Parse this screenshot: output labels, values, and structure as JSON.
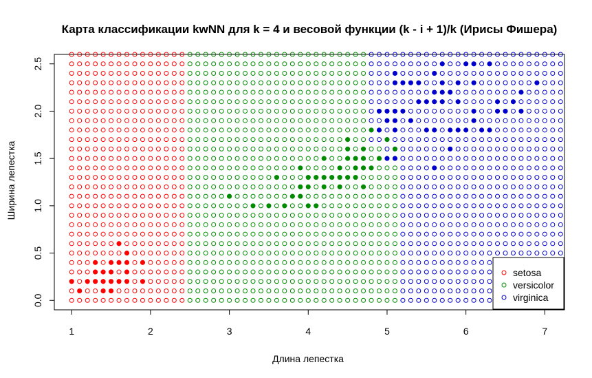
{
  "chart_data": {
    "type": "scatter",
    "title": "Карта классификации kwNN для k = 4 и весовой функции (k - i + 1)/k (Ирисы Фишера)",
    "xlabel": "Длина лепестка",
    "ylabel": "Ширина лепестка",
    "xlim": [
      0.78,
      7.25
    ],
    "ylim": [
      -0.1,
      2.6
    ],
    "x_ticks": [
      "1",
      "2",
      "3",
      "4",
      "5",
      "6",
      "7"
    ],
    "x_tick_values": [
      1,
      2,
      3,
      4,
      5,
      6,
      7
    ],
    "y_ticks": [
      "0.0",
      "0.5",
      "1.0",
      "1.5",
      "2.0",
      "2.5"
    ],
    "y_tick_values": [
      0,
      0.5,
      1.0,
      1.5,
      2.0,
      2.5
    ],
    "grid": false,
    "legend_position": "bottom-right",
    "colors": {
      "setosa": "#ff0000",
      "versicolor": "#008b00",
      "virginica": "#0000cd"
    },
    "classification_map": {
      "x_start": 1.0,
      "x_end": 7.2,
      "x_step": 0.1,
      "y_start": 0.0,
      "y_end": 2.6,
      "y_step": 0.1,
      "regions": [
        {
          "class": "setosa",
          "x_min": 1.0,
          "x_max": 2.4,
          "y_min": 0.0,
          "y_max": 2.6
        },
        {
          "class": "versicolor",
          "x_min": 2.5,
          "x_max": 4.7,
          "y_min": 0.0,
          "y_max": 2.6
        },
        {
          "class": "virginica",
          "x_min": 4.8,
          "x_max": 7.2,
          "y_min": 0.0,
          "y_max": 2.6
        },
        {
          "class": "versicolor",
          "x_min": 4.8,
          "x_max": 4.9,
          "y_min": 0.0,
          "y_max": 1.6
        },
        {
          "class": "versicolor",
          "x_min": 5.0,
          "x_max": 5.1,
          "y_min": 0.0,
          "y_max": 1.4
        }
      ]
    },
    "series": [
      {
        "name": "setosa",
        "marker": "open-circle",
        "color": "#ff0000",
        "points": [
          [
            1.4,
            0.2
          ],
          [
            1.4,
            0.2
          ],
          [
            1.3,
            0.2
          ],
          [
            1.5,
            0.2
          ],
          [
            1.4,
            0.2
          ],
          [
            1.7,
            0.4
          ],
          [
            1.4,
            0.3
          ],
          [
            1.5,
            0.2
          ],
          [
            1.4,
            0.2
          ],
          [
            1.5,
            0.1
          ],
          [
            1.5,
            0.2
          ],
          [
            1.6,
            0.2
          ],
          [
            1.4,
            0.1
          ],
          [
            1.1,
            0.1
          ],
          [
            1.2,
            0.2
          ],
          [
            1.5,
            0.4
          ],
          [
            1.3,
            0.4
          ],
          [
            1.4,
            0.3
          ],
          [
            1.7,
            0.3
          ],
          [
            1.5,
            0.3
          ],
          [
            1.7,
            0.2
          ],
          [
            1.5,
            0.4
          ],
          [
            1.0,
            0.2
          ],
          [
            1.7,
            0.5
          ],
          [
            1.9,
            0.2
          ],
          [
            1.6,
            0.2
          ],
          [
            1.6,
            0.4
          ],
          [
            1.5,
            0.2
          ],
          [
            1.4,
            0.2
          ],
          [
            1.6,
            0.2
          ],
          [
            1.6,
            0.2
          ],
          [
            1.5,
            0.4
          ],
          [
            1.5,
            0.1
          ],
          [
            1.4,
            0.2
          ],
          [
            1.5,
            0.2
          ],
          [
            1.2,
            0.2
          ],
          [
            1.3,
            0.2
          ],
          [
            1.4,
            0.1
          ],
          [
            1.3,
            0.2
          ],
          [
            1.5,
            0.2
          ],
          [
            1.3,
            0.3
          ],
          [
            1.3,
            0.3
          ],
          [
            1.3,
            0.2
          ],
          [
            1.6,
            0.6
          ],
          [
            1.9,
            0.4
          ],
          [
            1.4,
            0.3
          ],
          [
            1.6,
            0.2
          ],
          [
            1.4,
            0.2
          ],
          [
            1.5,
            0.2
          ],
          [
            1.4,
            0.2
          ]
        ]
      },
      {
        "name": "versicolor",
        "marker": "open-circle",
        "color": "#008b00",
        "points": [
          [
            4.7,
            1.4
          ],
          [
            4.5,
            1.5
          ],
          [
            4.9,
            1.5
          ],
          [
            4.0,
            1.3
          ],
          [
            4.6,
            1.5
          ],
          [
            4.5,
            1.3
          ],
          [
            4.7,
            1.6
          ],
          [
            3.3,
            1.0
          ],
          [
            4.6,
            1.3
          ],
          [
            3.9,
            1.4
          ],
          [
            3.5,
            1.0
          ],
          [
            4.2,
            1.5
          ],
          [
            4.0,
            1.0
          ],
          [
            4.7,
            1.4
          ],
          [
            3.6,
            1.3
          ],
          [
            4.4,
            1.4
          ],
          [
            4.5,
            1.5
          ],
          [
            4.1,
            1.0
          ],
          [
            4.5,
            1.5
          ],
          [
            3.9,
            1.1
          ],
          [
            4.8,
            1.8
          ],
          [
            4.0,
            1.3
          ],
          [
            4.9,
            1.5
          ],
          [
            4.7,
            1.2
          ],
          [
            4.3,
            1.3
          ],
          [
            4.4,
            1.4
          ],
          [
            4.8,
            1.4
          ],
          [
            5.0,
            1.7
          ],
          [
            4.5,
            1.5
          ],
          [
            3.5,
            1.0
          ],
          [
            3.8,
            1.1
          ],
          [
            3.7,
            1.0
          ],
          [
            3.9,
            1.2
          ],
          [
            5.1,
            1.6
          ],
          [
            4.5,
            1.5
          ],
          [
            4.5,
            1.6
          ],
          [
            4.7,
            1.5
          ],
          [
            4.4,
            1.3
          ],
          [
            4.1,
            1.3
          ],
          [
            4.0,
            1.3
          ],
          [
            4.4,
            1.2
          ],
          [
            4.6,
            1.4
          ],
          [
            4.0,
            1.2
          ],
          [
            3.3,
            1.0
          ],
          [
            4.2,
            1.3
          ],
          [
            4.2,
            1.2
          ],
          [
            4.2,
            1.3
          ],
          [
            4.3,
            1.3
          ],
          [
            3.0,
            1.1
          ],
          [
            4.1,
            1.3
          ]
        ]
      },
      {
        "name": "virginica",
        "marker": "open-circle",
        "color": "#0000cd",
        "points": [
          [
            6.0,
            2.5
          ],
          [
            5.1,
            1.9
          ],
          [
            5.9,
            2.1
          ],
          [
            5.6,
            1.8
          ],
          [
            5.8,
            2.2
          ],
          [
            6.6,
            2.1
          ],
          [
            4.5,
            1.7
          ],
          [
            6.3,
            1.8
          ],
          [
            5.8,
            1.8
          ],
          [
            6.1,
            2.5
          ],
          [
            5.1,
            2.0
          ],
          [
            5.3,
            1.9
          ],
          [
            5.5,
            2.1
          ],
          [
            5.0,
            2.0
          ],
          [
            5.1,
            2.4
          ],
          [
            5.3,
            2.3
          ],
          [
            5.5,
            1.8
          ],
          [
            6.7,
            2.2
          ],
          [
            6.9,
            2.3
          ],
          [
            5.0,
            1.5
          ],
          [
            5.7,
            2.3
          ],
          [
            4.9,
            2.0
          ],
          [
            6.7,
            2.0
          ],
          [
            4.9,
            1.8
          ],
          [
            5.7,
            2.1
          ],
          [
            6.0,
            1.8
          ],
          [
            4.8,
            1.8
          ],
          [
            4.9,
            1.8
          ],
          [
            5.6,
            2.1
          ],
          [
            5.8,
            1.6
          ],
          [
            6.1,
            1.9
          ],
          [
            6.4,
            2.0
          ],
          [
            5.6,
            2.2
          ],
          [
            5.1,
            1.5
          ],
          [
            5.6,
            1.4
          ],
          [
            6.1,
            2.3
          ],
          [
            5.6,
            2.4
          ],
          [
            5.5,
            1.8
          ],
          [
            4.8,
            1.8
          ],
          [
            5.4,
            2.1
          ],
          [
            5.6,
            2.4
          ],
          [
            5.1,
            2.3
          ],
          [
            5.1,
            1.9
          ],
          [
            5.9,
            2.3
          ],
          [
            5.7,
            2.5
          ],
          [
            5.2,
            2.3
          ],
          [
            5.0,
            1.9
          ],
          [
            5.2,
            2.0
          ],
          [
            5.4,
            2.3
          ],
          [
            5.1,
            1.8
          ]
        ]
      }
    ],
    "training_points": [
      {
        "class": "setosa",
        "marker": "filled-circle",
        "points": [
          [
            1.4,
            0.2
          ],
          [
            1.3,
            0.2
          ],
          [
            1.5,
            0.2
          ],
          [
            1.7,
            0.4
          ],
          [
            1.4,
            0.3
          ],
          [
            1.5,
            0.1
          ],
          [
            1.6,
            0.2
          ],
          [
            1.4,
            0.1
          ],
          [
            1.1,
            0.1
          ],
          [
            1.2,
            0.2
          ],
          [
            1.5,
            0.4
          ],
          [
            1.3,
            0.4
          ],
          [
            1.7,
            0.3
          ],
          [
            1.5,
            0.3
          ],
          [
            1.7,
            0.2
          ],
          [
            1.0,
            0.2
          ],
          [
            1.7,
            0.5
          ],
          [
            1.9,
            0.2
          ],
          [
            1.6,
            0.4
          ],
          [
            1.3,
            0.3
          ],
          [
            1.6,
            0.6
          ],
          [
            1.9,
            0.4
          ]
        ]
      },
      {
        "class": "versicolor",
        "marker": "filled-circle",
        "points": [
          [
            4.7,
            1.4
          ],
          [
            4.5,
            1.5
          ],
          [
            4.9,
            1.5
          ],
          [
            4.0,
            1.3
          ],
          [
            4.6,
            1.5
          ],
          [
            4.5,
            1.3
          ],
          [
            4.7,
            1.6
          ],
          [
            3.3,
            1.0
          ],
          [
            4.6,
            1.3
          ],
          [
            3.9,
            1.4
          ],
          [
            3.5,
            1.0
          ],
          [
            4.2,
            1.5
          ],
          [
            4.0,
            1.0
          ],
          [
            3.6,
            1.3
          ],
          [
            4.4,
            1.4
          ],
          [
            4.1,
            1.0
          ],
          [
            3.9,
            1.1
          ],
          [
            4.8,
            1.8
          ],
          [
            4.7,
            1.2
          ],
          [
            4.3,
            1.3
          ],
          [
            4.8,
            1.4
          ],
          [
            5.0,
            1.7
          ],
          [
            3.8,
            1.1
          ],
          [
            3.7,
            1.0
          ],
          [
            3.9,
            1.2
          ],
          [
            5.1,
            1.6
          ],
          [
            4.5,
            1.6
          ],
          [
            4.7,
            1.5
          ],
          [
            4.1,
            1.3
          ],
          [
            4.4,
            1.2
          ],
          [
            4.6,
            1.4
          ],
          [
            4.0,
            1.2
          ],
          [
            4.2,
            1.3
          ],
          [
            4.2,
            1.2
          ],
          [
            3.0,
            1.1
          ],
          [
            4.4,
            1.3
          ],
          [
            4.5,
            1.7
          ]
        ]
      },
      {
        "class": "virginica",
        "marker": "filled-circle",
        "points": [
          [
            6.0,
            2.5
          ],
          [
            5.1,
            1.9
          ],
          [
            5.9,
            2.1
          ],
          [
            5.6,
            1.8
          ],
          [
            5.8,
            2.2
          ],
          [
            6.6,
            2.1
          ],
          [
            6.3,
            1.8
          ],
          [
            5.8,
            1.8
          ],
          [
            6.1,
            2.5
          ],
          [
            5.1,
            2.0
          ],
          [
            5.3,
            1.9
          ],
          [
            5.5,
            2.1
          ],
          [
            5.0,
            2.0
          ],
          [
            5.1,
            2.4
          ],
          [
            5.3,
            2.3
          ],
          [
            5.5,
            1.8
          ],
          [
            6.7,
            2.2
          ],
          [
            6.9,
            2.3
          ],
          [
            5.0,
            1.5
          ],
          [
            5.7,
            2.3
          ],
          [
            4.9,
            2.0
          ],
          [
            6.7,
            2.0
          ],
          [
            4.9,
            1.8
          ],
          [
            5.7,
            2.1
          ],
          [
            6.0,
            1.8
          ],
          [
            5.6,
            2.1
          ],
          [
            5.8,
            1.6
          ],
          [
            6.1,
            1.9
          ],
          [
            6.4,
            2.0
          ],
          [
            5.6,
            2.2
          ],
          [
            5.1,
            1.5
          ],
          [
            5.6,
            1.4
          ],
          [
            6.1,
            2.3
          ],
          [
            5.6,
            2.4
          ],
          [
            5.4,
            2.1
          ],
          [
            5.1,
            2.3
          ],
          [
            5.9,
            2.3
          ],
          [
            5.7,
            2.5
          ],
          [
            5.2,
            2.3
          ],
          [
            5.0,
            1.9
          ],
          [
            5.2,
            2.0
          ],
          [
            5.4,
            2.3
          ],
          [
            5.1,
            1.8
          ],
          [
            6.1,
            2.0
          ],
          [
            5.7,
            2.2
          ],
          [
            6.3,
            2.5
          ],
          [
            6.4,
            2.1
          ],
          [
            6.5,
            2.0
          ],
          [
            5.9,
            1.8
          ],
          [
            6.2,
            1.8
          ]
        ]
      }
    ],
    "legend": [
      {
        "label": "setosa",
        "color": "#ff0000"
      },
      {
        "label": "versicolor",
        "color": "#008b00"
      },
      {
        "label": "virginica",
        "color": "#0000cd"
      }
    ]
  }
}
